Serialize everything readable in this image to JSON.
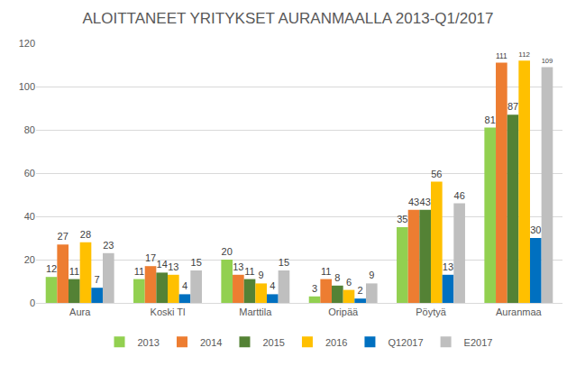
{
  "chart_data": {
    "type": "bar",
    "title": "ALOITTANEET YRITYKSET AURANMAALLA 2013-Q1/2017",
    "categories": [
      "Aura",
      "Koski Tl",
      "Marttila",
      "Oripää",
      "Pöytyä",
      "Auranmaa"
    ],
    "series": [
      {
        "name": "2013",
        "color": "#92d050",
        "values": [
          12,
          11,
          20,
          3,
          35,
          81
        ]
      },
      {
        "name": "2014",
        "color": "#ed7d31",
        "values": [
          27,
          17,
          13,
          11,
          43,
          111
        ]
      },
      {
        "name": "2015",
        "color": "#548235",
        "values": [
          11,
          14,
          11,
          8,
          43,
          87
        ]
      },
      {
        "name": "2016",
        "color": "#ffc000",
        "values": [
          28,
          13,
          9,
          6,
          56,
          112
        ]
      },
      {
        "name": "Q12017",
        "color": "#0070c0",
        "values": [
          7,
          4,
          4,
          2,
          13,
          30
        ]
      },
      {
        "name": "E2017",
        "color": "#bfbfbf",
        "values": [
          23,
          15,
          15,
          9,
          46,
          109
        ]
      }
    ],
    "ylim": [
      0,
      120
    ],
    "yticks": [
      0,
      20,
      40,
      60,
      80,
      100,
      120
    ],
    "grid": true,
    "legend": "bottom",
    "data_labels": true
  }
}
